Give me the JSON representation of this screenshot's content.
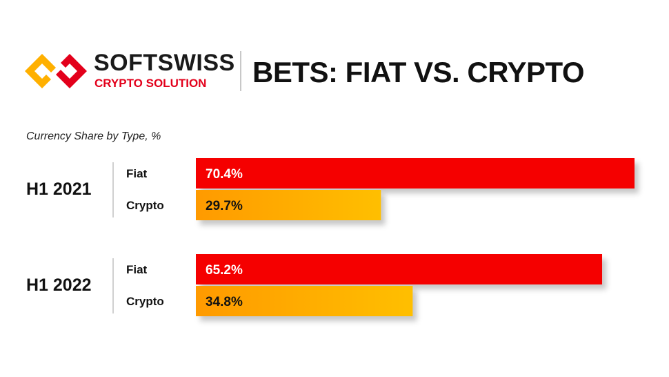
{
  "brand": {
    "name": "SOFTSWISS",
    "subtitle": "CRYPTO SOLUTION"
  },
  "page_title": "BETS: FIAT VS. CRYPTO",
  "colors": {
    "fiat": "#f50000",
    "crypto_start": "#ff9a00",
    "crypto_end": "#ffbf00",
    "logo_orange": "#ffb000",
    "logo_red": "#e3001b",
    "text": "#111111",
    "bar_label": "#111111",
    "axis_line": "#d0d0d0"
  },
  "chart_data": {
    "type": "bar",
    "orientation": "horizontal",
    "title": "Currency Share by Type, %",
    "groups": [
      "H1 2021",
      "H1 2022"
    ],
    "series": [
      {
        "name": "Fiat",
        "values": [
          70.4,
          65.2
        ],
        "labels": [
          "70.4%",
          "65.2%"
        ]
      },
      {
        "name": "Crypto",
        "values": [
          29.7,
          34.8
        ],
        "labels": [
          "29.7%",
          "34.8%"
        ]
      }
    ],
    "xlim": [
      0,
      70.4
    ],
    "grid": false,
    "legend": "none"
  }
}
